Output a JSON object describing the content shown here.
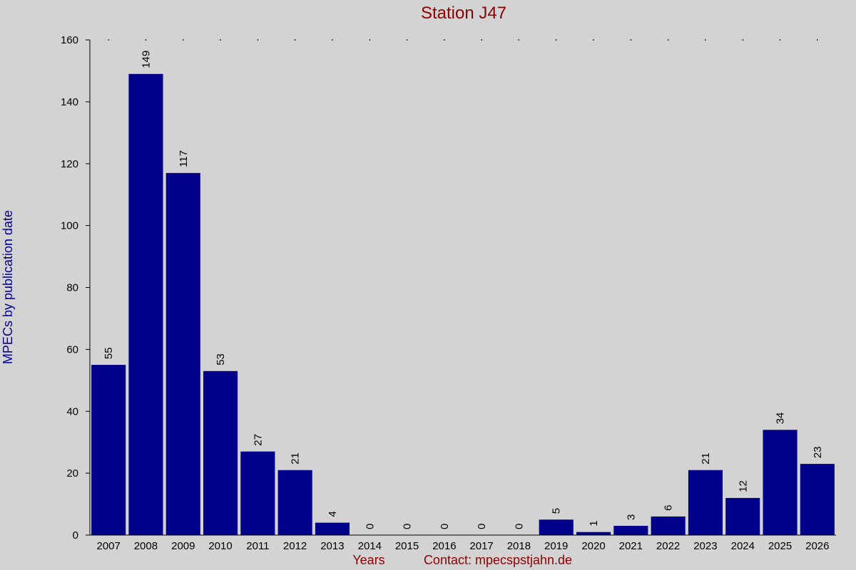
{
  "chart_data": {
    "type": "bar",
    "title": "Station J47",
    "ylabel": "MPECs by publication date",
    "xlabel": "Years",
    "contact": "Contact: mpecspstjahn.de",
    "ylim": [
      0,
      160
    ],
    "yticks": [
      0,
      20,
      40,
      60,
      80,
      100,
      120,
      140,
      160
    ],
    "categories": [
      "2007",
      "2008",
      "2009",
      "2010",
      "2011",
      "2012",
      "2013",
      "2014",
      "2015",
      "2016",
      "2017",
      "2018",
      "2019",
      "2020",
      "2021",
      "2022",
      "2023",
      "2024",
      "2025",
      "2026"
    ],
    "values": [
      55,
      149,
      117,
      53,
      27,
      21,
      4,
      0,
      0,
      0,
      0,
      0,
      5,
      1,
      3,
      6,
      21,
      12,
      34,
      23
    ],
    "data_labels_shown": true,
    "colors": {
      "bar": "#00008b",
      "background": "#d3d3d3",
      "title": "#8b0000",
      "ylabel": "#00008b",
      "footer": "#8b0000"
    }
  }
}
